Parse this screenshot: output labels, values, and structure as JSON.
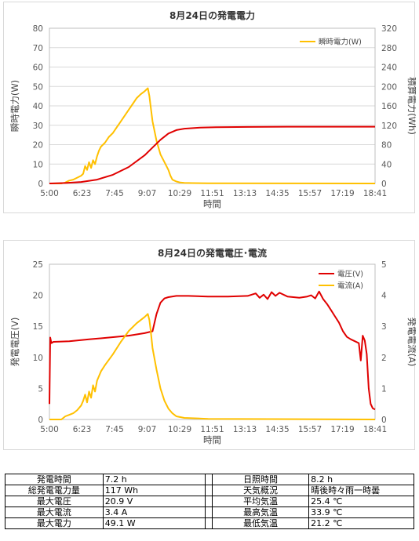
{
  "chart_data": [
    {
      "type": "line",
      "title": "8月24日の発電電力",
      "xlabel": "時間",
      "ylabel": "瞬時電力(W)",
      "ylabel_right": "積算電力(Wh)",
      "x_ticks": [
        "5:00",
        "6:23",
        "7:45",
        "9:07",
        "10:29",
        "11:51",
        "13:13",
        "14:35",
        "15:57",
        "17:19",
        "18:41"
      ],
      "xlim_min": [
        300,
        1121
      ],
      "ylim": [
        0,
        80
      ],
      "y_ticks": [
        0,
        10,
        20,
        30,
        40,
        50,
        60,
        70,
        80
      ],
      "ylim_right": [
        0,
        320
      ],
      "y_ticks_right": [
        0,
        40,
        80,
        120,
        160,
        200,
        240,
        280,
        320
      ],
      "grid": true,
      "legend_position": "top-right",
      "series": [
        {
          "name": "瞬時電力(W)",
          "axis": "left",
          "color": "#FFC000",
          "x_min": [
            300,
            330,
            340,
            345,
            350,
            360,
            370,
            380,
            385,
            390,
            395,
            400,
            405,
            410,
            415,
            420,
            425,
            430,
            440,
            450,
            460,
            470,
            480,
            490,
            500,
            510,
            520,
            530,
            540,
            548,
            552,
            555,
            560,
            570,
            580,
            590,
            600,
            605,
            610,
            615,
            620,
            630,
            640,
            660,
            700,
            1121
          ],
          "values": [
            0,
            0,
            0.5,
            1,
            1.5,
            2,
            3,
            4,
            5,
            9,
            7,
            11,
            8,
            12,
            10,
            14,
            17,
            19,
            21,
            24,
            26,
            29,
            32,
            35,
            38,
            41,
            44,
            46,
            47.5,
            49.1,
            45,
            40,
            32,
            22,
            15,
            11,
            7,
            4,
            2,
            1.5,
            1,
            0.5,
            0.3,
            0.2,
            0.1,
            0
          ]
        },
        {
          "name": "積算電力(Wh)",
          "axis": "right",
          "color": "#E00000",
          "x_min": [
            300,
            340,
            380,
            420,
            460,
            500,
            540,
            560,
            580,
            600,
            620,
            640,
            680,
            720,
            800,
            900,
            1000,
            1121
          ],
          "values": [
            0,
            1,
            3,
            8,
            18,
            34,
            58,
            74,
            90,
            103,
            110,
            113,
            115,
            116,
            116.5,
            117,
            117,
            117
          ]
        }
      ]
    },
    {
      "type": "line",
      "title": "8月24日の発電電圧･電流",
      "xlabel": "時間",
      "ylabel": "発電電圧(V)",
      "ylabel_right": "発電電流(A)",
      "x_ticks": [
        "5:00",
        "6:23",
        "7:45",
        "9:07",
        "10:29",
        "11:51",
        "13:13",
        "14:35",
        "15:57",
        "17:19",
        "18:41"
      ],
      "xlim_min": [
        300,
        1121
      ],
      "ylim": [
        0,
        25
      ],
      "y_ticks": [
        0,
        5,
        10,
        15,
        20,
        25
      ],
      "ylim_right": [
        0,
        5
      ],
      "y_ticks_right": [
        0,
        1,
        2,
        3,
        4,
        5
      ],
      "grid": false,
      "legend_position": "top-right",
      "series": [
        {
          "name": "電圧(V)",
          "axis": "left",
          "color": "#E00000",
          "x_min": [
            300,
            302,
            305,
            310,
            350,
            400,
            450,
            500,
            540,
            560,
            570,
            580,
            590,
            600,
            620,
            650,
            700,
            750,
            800,
            820,
            830,
            840,
            850,
            860,
            870,
            880,
            900,
            930,
            950,
            960,
            970,
            980,
            990,
            1000,
            1010,
            1020,
            1030,
            1040,
            1050,
            1060,
            1070,
            1080,
            1085,
            1090,
            1095,
            1100,
            1105,
            1110,
            1115,
            1121
          ],
          "values": [
            2.5,
            13.2,
            12.3,
            12.5,
            12.6,
            12.9,
            13.2,
            13.5,
            13.9,
            14.2,
            17,
            18.8,
            19.5,
            19.7,
            19.9,
            19.9,
            19.8,
            19.8,
            19.9,
            20.3,
            19.6,
            20.1,
            19.4,
            20.5,
            19.9,
            20.4,
            19.8,
            19.6,
            19.8,
            20.0,
            19.5,
            20.6,
            19.4,
            18.6,
            17.6,
            16.6,
            15.6,
            14.2,
            13.3,
            12.9,
            12.6,
            12.3,
            9.5,
            13.5,
            12.7,
            10.5,
            5.0,
            2.5,
            1.8,
            1.6
          ]
        },
        {
          "name": "電流(A)",
          "axis": "right",
          "color": "#FFC000",
          "x_min": [
            300,
            330,
            340,
            350,
            360,
            370,
            380,
            385,
            390,
            395,
            400,
            405,
            410,
            415,
            420,
            430,
            440,
            460,
            480,
            500,
            520,
            540,
            548,
            552,
            555,
            560,
            570,
            580,
            590,
            600,
            610,
            620,
            640,
            700,
            1121
          ],
          "values": [
            0,
            0,
            0.1,
            0.15,
            0.2,
            0.3,
            0.45,
            0.6,
            0.8,
            0.55,
            0.9,
            0.7,
            1.1,
            0.9,
            1.25,
            1.55,
            1.75,
            2.1,
            2.5,
            2.85,
            3.1,
            3.3,
            3.4,
            3.2,
            2.9,
            2.3,
            1.6,
            1.0,
            0.6,
            0.35,
            0.2,
            0.1,
            0.05,
            0.02,
            0
          ]
        }
      ]
    }
  ],
  "summary": {
    "rows": [
      [
        {
          "label": "発電時間",
          "value": "7.2 h"
        },
        {
          "label": "日照時間",
          "value": "8.2 h"
        }
      ],
      [
        {
          "label": "総発電電力量",
          "value": "117 Wh"
        },
        {
          "label": "天気概況",
          "value": "晴後時々雨一時曇"
        }
      ],
      [
        {
          "label": "最大電圧",
          "value": "20.9 V"
        },
        {
          "label": "平均気温",
          "value": "25.4 ℃"
        }
      ],
      [
        {
          "label": "最大電流",
          "value": "3.4 A"
        },
        {
          "label": "最高気温",
          "value": "33.9 ℃"
        }
      ],
      [
        {
          "label": "最大電力",
          "value": "49.1 W"
        },
        {
          "label": "最低気温",
          "value": "21.2 ℃"
        }
      ]
    ]
  }
}
